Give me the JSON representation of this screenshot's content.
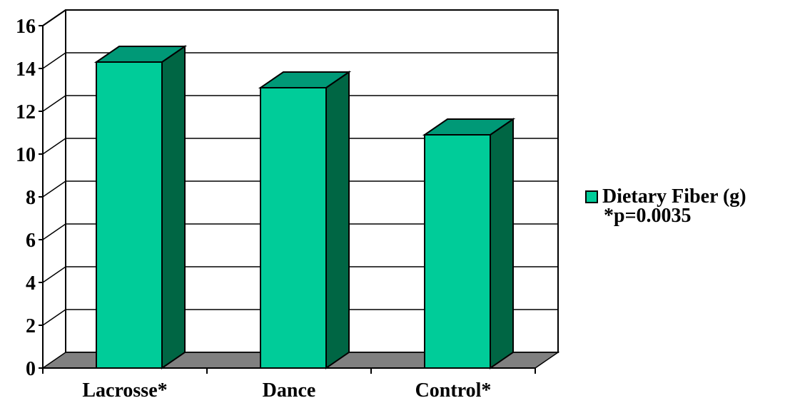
{
  "chart_data": {
    "type": "bar",
    "title": "",
    "xlabel": "",
    "ylabel": "",
    "categories": [
      "Lacrosse*",
      "Dance",
      "Control*"
    ],
    "series": [
      {
        "name": "Dietary Fiber (g)",
        "values": [
          14.3,
          13.1,
          10.9
        ]
      }
    ],
    "ylim": [
      0,
      16
    ],
    "yticks": [
      0,
      2,
      4,
      6,
      8,
      10,
      12,
      14,
      16
    ],
    "grid": true,
    "legend": "right",
    "three_d": true
  },
  "legend": {
    "series_label": "Dietary Fiber (g)",
    "note": "*p=0.0035"
  },
  "colors": {
    "bar_front": "#00CC99",
    "bar_top": "#009977",
    "bar_side": "#006644",
    "floor": "#808080",
    "grid": "#000000"
  }
}
